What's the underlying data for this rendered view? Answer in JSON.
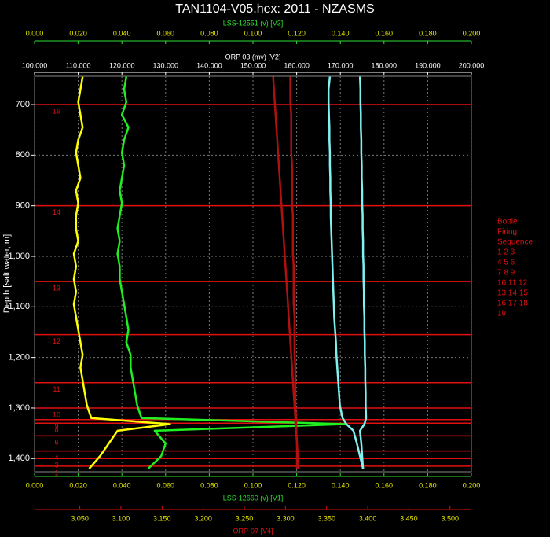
{
  "chart_data": {
    "type": "line",
    "title": "TAN1104-V05.hex: 2011 - NZASMS",
    "y_label": "Depth [salt water, m]",
    "ylim": [
      644,
      1426
    ],
    "inverted": true,
    "grid": true,
    "yticks": [
      700,
      800,
      900,
      {
        "value": 1000,
        "label": "1,000"
      },
      {
        "value": 1100,
        "label": "1,100"
      },
      {
        "value": 1200,
        "label": "1,200"
      },
      {
        "value": 1300,
        "label": "1,300"
      },
      {
        "value": 1400,
        "label": "1,400"
      }
    ],
    "x_axes": [
      {
        "label": "LSS-12660 (v)  [V1]",
        "color": "#30e030",
        "tick_color": "#e8e800",
        "xlim": [
          0,
          0.2
        ],
        "xticks": [
          {
            "value": 0,
            "label": "0.000"
          },
          {
            "value": 0.02,
            "label": "0.020"
          },
          {
            "value": 0.04,
            "label": "0.040"
          },
          {
            "value": 0.06,
            "label": "0.060"
          },
          {
            "value": 0.08,
            "label": "0.080"
          },
          {
            "value": 0.1,
            "label": "0.100"
          },
          {
            "value": 0.12,
            "label": "0.120"
          },
          {
            "value": 0.14,
            "label": "0.140"
          },
          {
            "value": 0.16,
            "label": "0.160"
          },
          {
            "value": 0.18,
            "label": "0.180"
          },
          {
            "value": 0.2,
            "label": "0.200"
          }
        ]
      },
      {
        "label": "ORP-07 [V4]",
        "color": "#e01010",
        "tick_color": "#e8e800",
        "xlim": [
          2.995,
          3.526
        ],
        "xticks": [
          {
            "value": 3.05,
            "label": "3.050"
          },
          {
            "value": 3.1,
            "label": "3.100"
          },
          {
            "value": 3.15,
            "label": "3.150"
          },
          {
            "value": 3.2,
            "label": "3.200"
          },
          {
            "value": 3.25,
            "label": "3.250"
          },
          {
            "value": 3.3,
            "label": "3.300"
          },
          {
            "value": 3.35,
            "label": "3.350"
          },
          {
            "value": 3.4,
            "label": "3.400"
          },
          {
            "value": 3.45,
            "label": "3.450"
          },
          {
            "value": 3.5,
            "label": "3.500"
          }
        ]
      },
      {
        "label": "LSS-12551 (v)  [V3]",
        "color": "#30e030",
        "tick_color": "#e8e800",
        "xlim": [
          0,
          0.2
        ],
        "xticks": [
          {
            "value": 0,
            "label": "0.000"
          },
          {
            "value": 0.02,
            "label": "0.020"
          },
          {
            "value": 0.04,
            "label": "0.040"
          },
          {
            "value": 0.06,
            "label": "0.060"
          },
          {
            "value": 0.08,
            "label": "0.080"
          },
          {
            "value": 0.1,
            "label": "0.100"
          },
          {
            "value": 0.12,
            "label": "0.120"
          },
          {
            "value": 0.14,
            "label": "0.140"
          },
          {
            "value": 0.16,
            "label": "0.160"
          },
          {
            "value": 0.18,
            "label": "0.180"
          },
          {
            "value": 0.2,
            "label": "0.200"
          }
        ]
      },
      {
        "label": "ORP 03 (mv)  [V2]",
        "color": "#ffffff",
        "tick_color": "#ffffff",
        "xlim": [
          100,
          200
        ],
        "xticks": [
          {
            "value": 100,
            "label": "100.000"
          },
          {
            "value": 110,
            "label": "110.000"
          },
          {
            "value": 120,
            "label": "120.000"
          },
          {
            "value": 130,
            "label": "130.000"
          },
          {
            "value": 140,
            "label": "140.000"
          },
          {
            "value": 150,
            "label": "150.000"
          },
          {
            "value": 160,
            "label": "160.000"
          },
          {
            "value": 170,
            "label": "170.000"
          },
          {
            "value": 180,
            "label": "180.000"
          },
          {
            "value": 190,
            "label": "190.000"
          },
          {
            "value": 200,
            "label": "200.000"
          }
        ]
      }
    ],
    "y": [
      645,
      670,
      695,
      720,
      745,
      770,
      795,
      820,
      845,
      870,
      895,
      920,
      945,
      970,
      995,
      1020,
      1045,
      1070,
      1095,
      1120,
      1145,
      1170,
      1195,
      1220,
      1245,
      1270,
      1295,
      1320,
      1332,
      1345,
      1370,
      1395,
      1420
    ],
    "series": [
      {
        "color": "#ffff00",
        "axis": 0,
        "values": [
          0.022,
          0.021,
          0.02,
          0.021,
          0.022,
          0.02,
          0.019,
          0.02,
          0.021,
          0.019,
          0.02,
          0.019,
          0.019,
          0.02,
          0.018,
          0.019,
          0.018,
          0.019,
          0.018,
          0.019,
          0.02,
          0.021,
          0.022,
          0.021,
          0.022,
          0.023,
          0.024,
          0.026,
          0.062,
          0.038,
          0.034,
          0.03,
          0.025
        ]
      },
      {
        "color": "#20f020",
        "axis": 2,
        "values": [
          0.042,
          0.041,
          0.042,
          0.04,
          0.043,
          0.041,
          0.04,
          0.041,
          0.04,
          0.039,
          0.04,
          0.039,
          0.038,
          0.039,
          0.038,
          0.039,
          0.039,
          0.04,
          0.041,
          0.042,
          0.043,
          0.042,
          0.044,
          0.044,
          0.045,
          0.046,
          0.047,
          0.049,
          0.142,
          0.055,
          0.06,
          0.058,
          0.052
        ]
      },
      {
        "color": "#b01010",
        "axis": 1,
        "values": [
          3.285,
          3.286,
          3.287,
          3.288,
          3.289,
          3.29,
          3.291,
          3.292,
          3.293,
          3.294,
          3.295,
          3.296,
          3.297,
          3.298,
          3.299,
          3.3,
          3.301,
          3.302,
          3.303,
          3.304,
          3.305,
          3.306,
          3.307,
          3.308,
          3.309,
          3.31,
          3.311,
          3.312,
          3.312,
          3.313,
          3.314,
          3.315,
          3.316
        ]
      },
      {
        "color": "#b01010",
        "axis": 1,
        "values": [
          3.306,
          3.306,
          3.306,
          3.307,
          3.307,
          3.307,
          3.307,
          3.308,
          3.308,
          3.308,
          3.308,
          3.309,
          3.309,
          3.309,
          3.309,
          3.31,
          3.31,
          3.31,
          3.31,
          3.311,
          3.311,
          3.311,
          3.311,
          3.312,
          3.312,
          3.312,
          3.312,
          3.313,
          3.313,
          3.313,
          3.314,
          3.314,
          3.314
        ]
      },
      {
        "color": "#80f0f0",
        "axis": 3,
        "values": [
          167.6,
          167.3,
          167.3,
          167.4,
          167.5,
          167.5,
          167.6,
          167.6,
          167.7,
          167.7,
          167.8,
          167.8,
          167.9,
          168.0,
          168.1,
          168.2,
          168.3,
          168.4,
          168.5,
          168.6,
          168.8,
          169.0,
          169.1,
          169.3,
          169.5,
          169.7,
          169.9,
          170.5,
          171.4,
          173.0,
          173.8,
          174.5,
          175.2
        ]
      },
      {
        "color": "#80f0f0",
        "axis": 3,
        "values": [
          174.5,
          174.6,
          174.6,
          174.7,
          174.7,
          174.8,
          174.8,
          174.9,
          174.9,
          175.0,
          175.0,
          175.1,
          175.1,
          175.2,
          175.2,
          175.3,
          175.3,
          175.4,
          175.4,
          175.5,
          175.5,
          175.6,
          175.6,
          175.7,
          175.7,
          175.8,
          175.8,
          175.9,
          175.5,
          174.5,
          174.8,
          175.0,
          175.2
        ]
      }
    ],
    "bottle_color": "#e01010",
    "bottles": [
      {
        "label": "16",
        "depth": 700
      },
      {
        "label": "14",
        "depth": 900
      },
      {
        "label": "13",
        "depth": 1050
      },
      {
        "label": "12",
        "depth": 1155
      },
      {
        "label": "11",
        "depth": 1250
      },
      {
        "label": "10",
        "depth": 1300
      },
      {
        "label": "9",
        "depth": 1323
      },
      {
        "label": "8",
        "depth": 1330
      },
      {
        "label": "6",
        "depth": 1355
      },
      {
        "label": "4",
        "depth": 1385
      },
      {
        "label": "3",
        "depth": 1400
      },
      {
        "label": "1",
        "depth": 1415
      }
    ],
    "bottle_legend": [
      "Bottle",
      "Firing",
      "Sequence",
      "1  2  3",
      "4  5  6",
      "7  8  9",
      "10 11 12",
      "13 14 15",
      "16 17 18",
      "19"
    ]
  }
}
